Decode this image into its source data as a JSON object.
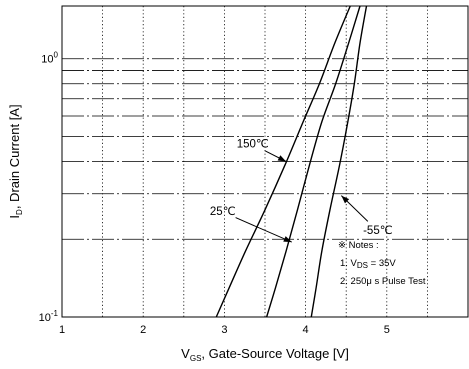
{
  "chart_data": {
    "type": "line",
    "x_axis": {
      "label_main": "V",
      "label_sub": "GS",
      "label_rest": ", Gate-Source Voltage [V]",
      "range": [
        1,
        6
      ],
      "ticks": [
        1,
        2,
        3,
        4,
        5
      ],
      "tick_labels": [
        "1",
        "2",
        "3",
        "4",
        "5"
      ]
    },
    "y_axis": {
      "scale": "log",
      "label_main": "I",
      "label_sub": "D",
      "label_rest": ", Drain Current [A]",
      "range": [
        0.1,
        1.6
      ],
      "ticks": [
        {
          "value": 1,
          "base": "10",
          "exp": "0"
        },
        {
          "value": 0.1,
          "base": "10",
          "exp": "-1"
        }
      ]
    },
    "grid": true,
    "series": [
      {
        "name": "150℃",
        "label": "150℃",
        "x": [
          2.9,
          3.06,
          3.26,
          3.5,
          3.75,
          3.97,
          4.17,
          4.36,
          4.55
        ],
        "y": [
          0.1,
          0.13,
          0.18,
          0.26,
          0.39,
          0.57,
          0.8,
          1.15,
          1.6
        ]
      },
      {
        "name": "25℃",
        "label": "25℃",
        "x": [
          3.52,
          3.63,
          3.76,
          3.9,
          4.05,
          4.2,
          4.37,
          4.53,
          4.67
        ],
        "y": [
          0.1,
          0.13,
          0.18,
          0.26,
          0.39,
          0.57,
          0.8,
          1.15,
          1.6
        ]
      },
      {
        "name": "-55℃",
        "label": "-55℃",
        "x": [
          4.07,
          4.13,
          4.2,
          4.3,
          4.42,
          4.52,
          4.6,
          4.67,
          4.75
        ],
        "y": [
          0.1,
          0.13,
          0.18,
          0.26,
          0.39,
          0.57,
          0.8,
          1.15,
          1.6
        ]
      }
    ],
    "annotations": [
      {
        "text": "150℃",
        "series": 0,
        "label_pos": [
          3.35,
          0.465
        ],
        "arrow_to": [
          3.76,
          0.4
        ]
      },
      {
        "text": "25℃",
        "series": 1,
        "label_pos": [
          2.98,
          0.255
        ],
        "arrow_to": [
          3.83,
          0.195
        ]
      },
      {
        "text": "-55℃",
        "series": 2,
        "label_pos": [
          4.89,
          0.215
        ],
        "arrow_to": [
          4.44,
          0.295
        ]
      }
    ],
    "notes": {
      "title": "※ Notes :",
      "item1_main": "1. V",
      "item1_sub": "DS",
      "item1_rest": " = 35V",
      "item2": "2. 250μ s Pulse Test"
    }
  }
}
